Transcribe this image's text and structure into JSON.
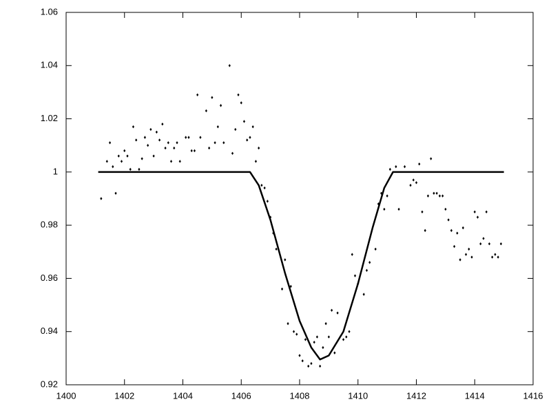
{
  "chart_data": {
    "type": "scatter",
    "xlim": [
      1400,
      1416
    ],
    "xticks": [
      1400,
      1402,
      1404,
      1406,
      1408,
      1410,
      1412,
      1414,
      1416
    ],
    "ylim": [
      0.92,
      1.06
    ],
    "yticks": [
      0.92,
      0.94,
      0.96,
      0.98,
      1,
      1.02,
      1.04,
      1.06
    ],
    "series": [
      {
        "mode": "markers",
        "color": "#000000",
        "x": [
          1401.2,
          1401.4,
          1401.5,
          1401.6,
          1401.7,
          1401.8,
          1401.9,
          1402.0,
          1402.1,
          1402.2,
          1402.3,
          1402.4,
          1402.5,
          1402.6,
          1402.7,
          1402.8,
          1402.9,
          1403.0,
          1403.1,
          1403.2,
          1403.3,
          1403.4,
          1403.5,
          1403.6,
          1403.7,
          1403.8,
          1403.9,
          1404.1,
          1404.2,
          1404.3,
          1404.4,
          1404.5,
          1404.6,
          1404.8,
          1404.9,
          1405.0,
          1405.1,
          1405.2,
          1405.3,
          1405.4,
          1405.6,
          1405.7,
          1405.8,
          1405.9,
          1406.0,
          1406.1,
          1406.2,
          1406.3,
          1406.4,
          1406.5,
          1406.6,
          1406.7,
          1406.8,
          1406.9,
          1407.0,
          1407.1,
          1407.2,
          1407.4,
          1407.5,
          1407.6,
          1407.7,
          1407.8,
          1407.9,
          1408.0,
          1408.1,
          1408.2,
          1408.3,
          1408.4,
          1408.5,
          1408.6,
          1408.7,
          1408.8,
          1408.9,
          1409.0,
          1409.1,
          1409.2,
          1409.3,
          1409.5,
          1409.6,
          1409.7,
          1409.8,
          1409.9,
          1410.0,
          1410.2,
          1410.3,
          1410.4,
          1410.6,
          1410.7,
          1410.8,
          1410.9,
          1411.0,
          1411.1,
          1411.3,
          1411.4,
          1411.6,
          1411.8,
          1411.9,
          1412.0,
          1412.1,
          1412.2,
          1412.3,
          1412.4,
          1412.5,
          1412.6,
          1412.7,
          1412.8,
          1412.9,
          1413.0,
          1413.1,
          1413.2,
          1413.3,
          1413.4,
          1413.5,
          1413.6,
          1413.7,
          1413.8,
          1413.9,
          1414.0,
          1414.1,
          1414.2,
          1414.3,
          1414.4,
          1414.5,
          1414.6,
          1414.7,
          1414.8,
          1414.9
        ],
        "values": [
          0.99,
          1.004,
          1.011,
          1.002,
          0.992,
          1.006,
          1.004,
          1.008,
          1.006,
          1.001,
          1.017,
          1.012,
          1.001,
          1.005,
          1.013,
          1.01,
          1.016,
          1.006,
          1.015,
          1.012,
          1.018,
          1.009,
          1.011,
          1.004,
          1.009,
          1.011,
          1.004,
          1.013,
          1.013,
          1.008,
          1.008,
          1.029,
          1.013,
          1.023,
          1.009,
          1.028,
          1.011,
          1.017,
          1.025,
          1.011,
          1.04,
          1.007,
          1.016,
          1.029,
          1.026,
          1.019,
          1.012,
          1.013,
          1.017,
          1.004,
          1.009,
          0.995,
          0.994,
          0.989,
          0.983,
          0.977,
          0.971,
          0.956,
          0.967,
          0.943,
          0.957,
          0.94,
          0.939,
          0.931,
          0.929,
          0.937,
          0.927,
          0.928,
          0.936,
          0.938,
          0.927,
          0.934,
          0.943,
          0.938,
          0.948,
          0.932,
          0.947,
          0.937,
          0.938,
          0.94,
          0.969,
          0.961,
          0.958,
          0.954,
          0.963,
          0.966,
          0.971,
          0.988,
          0.992,
          0.986,
          0.991,
          1.001,
          1.002,
          0.986,
          1.002,
          0.995,
          0.997,
          0.996,
          1.003,
          0.985,
          0.978,
          0.991,
          1.005,
          0.992,
          0.992,
          0.991,
          0.991,
          0.986,
          0.982,
          0.978,
          0.972,
          0.977,
          0.967,
          0.979,
          0.969,
          0.971,
          0.968,
          0.985,
          0.983,
          0.973,
          0.975,
          0.985,
          0.973,
          0.968,
          0.969,
          0.968,
          0.973
        ]
      },
      {
        "mode": "lines",
        "color": "#000000",
        "x": [
          1401.1,
          1406.3,
          1406.6,
          1407.0,
          1407.5,
          1408.0,
          1408.4,
          1408.7,
          1409.0,
          1409.5,
          1410.0,
          1410.5,
          1410.9,
          1411.2,
          1415.0
        ],
        "values": [
          1,
          1,
          0.995,
          0.982,
          0.962,
          0.944,
          0.934,
          0.9295,
          0.931,
          0.94,
          0.958,
          0.979,
          0.994,
          1,
          1
        ]
      }
    ]
  }
}
